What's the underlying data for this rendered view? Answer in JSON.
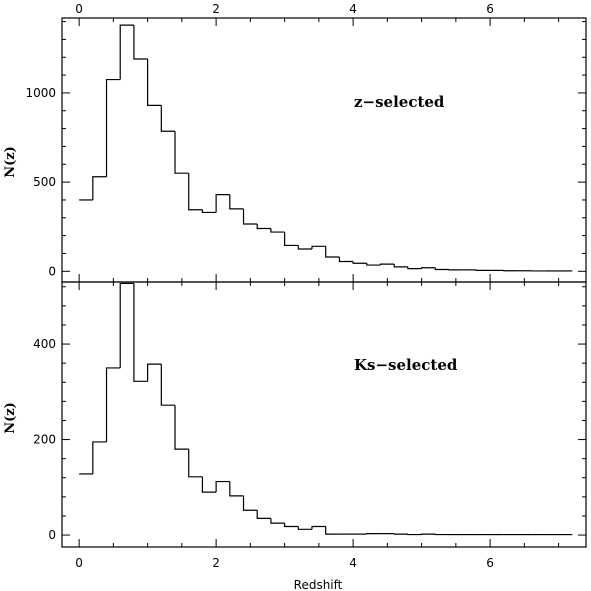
{
  "chart_data": [
    {
      "type": "histogram",
      "panel_label": "z−selected",
      "xlabel": "",
      "ylabel": "N(z)",
      "xlim": [
        -0.25,
        7.4
      ],
      "ylim": [
        -60,
        1420
      ],
      "x_ticks": [
        0,
        2,
        4,
        6
      ],
      "top_tick_labels": [
        "0",
        "2",
        "4",
        "6"
      ],
      "y_ticks": [
        0,
        500,
        1000
      ],
      "y_tick_labels": [
        "0",
        "500",
        "1000"
      ],
      "bin_width": 0.2,
      "bin_starts": [
        0.0,
        0.2,
        0.4,
        0.6,
        0.8,
        1.0,
        1.2,
        1.4,
        1.6,
        1.8,
        2.0,
        2.2,
        2.4,
        2.6,
        2.8,
        3.0,
        3.2,
        3.4,
        3.6,
        3.8,
        4.0,
        4.2,
        4.4,
        4.6,
        4.8,
        5.0,
        5.2,
        5.4,
        5.6,
        5.8,
        6.0,
        6.2,
        6.4,
        6.6,
        6.8,
        7.0
      ],
      "values": [
        400,
        530,
        1075,
        1380,
        1190,
        930,
        785,
        550,
        345,
        330,
        430,
        350,
        265,
        240,
        220,
        145,
        125,
        140,
        80,
        55,
        45,
        35,
        40,
        25,
        15,
        20,
        10,
        8,
        8,
        5,
        5,
        3,
        3,
        2,
        2,
        2
      ]
    },
    {
      "type": "histogram",
      "panel_label": "Ks−selected",
      "xlabel": "Redshift",
      "ylabel": "N(z)",
      "xlim": [
        -0.25,
        7.4
      ],
      "ylim": [
        -25,
        530
      ],
      "x_ticks": [
        0,
        2,
        4,
        6
      ],
      "x_tick_labels": [
        "0",
        "2",
        "4",
        "6"
      ],
      "y_ticks": [
        0,
        200,
        400
      ],
      "y_tick_labels": [
        "0",
        "200",
        "400"
      ],
      "bin_width": 0.2,
      "bin_starts": [
        0.0,
        0.2,
        0.4,
        0.6,
        0.8,
        1.0,
        1.2,
        1.4,
        1.6,
        1.8,
        2.0,
        2.2,
        2.4,
        2.6,
        2.8,
        3.0,
        3.2,
        3.4,
        3.6,
        3.8,
        4.0,
        4.2,
        4.4,
        4.6,
        4.8,
        5.0,
        5.2,
        5.4,
        5.6,
        5.8,
        6.0,
        6.2,
        6.4,
        6.6,
        6.8,
        7.0
      ],
      "values": [
        128,
        195,
        350,
        527,
        322,
        358,
        272,
        180,
        122,
        90,
        112,
        82,
        52,
        35,
        25,
        18,
        12,
        18,
        2,
        2,
        2,
        3,
        3,
        2,
        1,
        2,
        1,
        1,
        1,
        1,
        1,
        1,
        1,
        1,
        1,
        1
      ]
    }
  ]
}
